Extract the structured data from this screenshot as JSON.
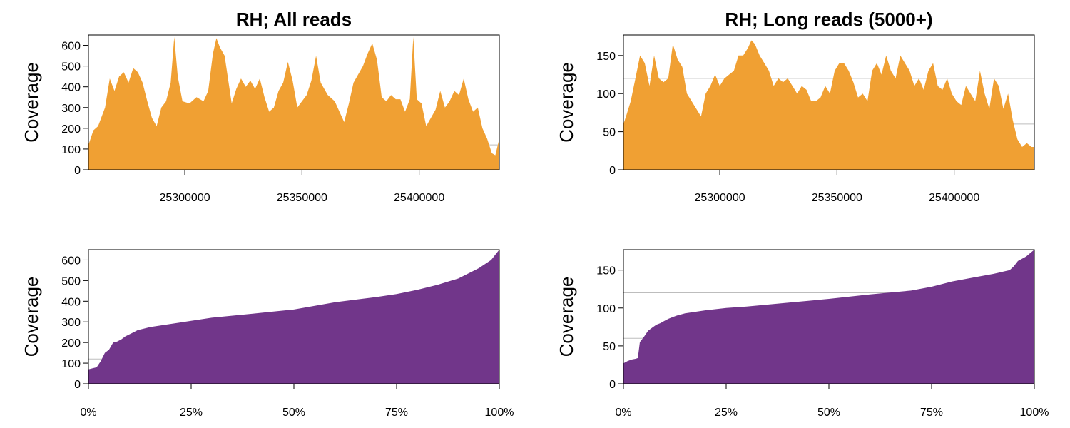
{
  "colors": {
    "coverage_fill": "#F0A033",
    "sorted_fill": "#71368A",
    "guide_line": "#bdbdbd",
    "axis": "#000000"
  },
  "chart_data": [
    {
      "type": "area",
      "title": "RH; All reads",
      "xlabel": "",
      "ylabel": "Coverage",
      "xlim": [
        25258900,
        25434200
      ],
      "ylim": [
        0,
        650
      ],
      "xticks": [
        25300000,
        25350000,
        25400000
      ],
      "xtick_labels": [
        "25300000",
        "25350000",
        "25400000"
      ],
      "yticks": [
        0,
        100,
        200,
        300,
        400,
        500,
        600
      ],
      "ytick_labels": [
        "0",
        "100",
        "200",
        "300",
        "400",
        "500",
        "600"
      ],
      "guide_lines": [
        120
      ],
      "x": [
        25258900,
        25261000,
        25263000,
        25266000,
        25268000,
        25270000,
        25272000,
        25274000,
        25276000,
        25278000,
        25280000,
        25282000,
        25284000,
        25286000,
        25288000,
        25290000,
        25292000,
        25294000,
        25295500,
        25297000,
        25299000,
        25302000,
        25305000,
        25308000,
        25310000,
        25312000,
        25313500,
        25315000,
        25317000,
        25320000,
        25322000,
        25324000,
        25326000,
        25328000,
        25330000,
        25332000,
        25334000,
        25336000,
        25338000,
        25340000,
        25342000,
        25344000,
        25346000,
        25348000,
        25350000,
        25352000,
        25354000,
        25356000,
        25358000,
        25361000,
        25364000,
        25366000,
        25368000,
        25370000,
        25372000,
        25374000,
        25376000,
        25378000,
        25380000,
        25382000,
        25384000,
        25386000,
        25388000,
        25390000,
        25392000,
        25394000,
        25396000,
        25397500,
        25399000,
        25401000,
        25403000,
        25405000,
        25407000,
        25409000,
        25411000,
        25413000,
        25415000,
        25417000,
        25419000,
        25421000,
        25423000,
        25425000,
        25427000,
        25429000,
        25431000,
        25432500,
        25434200
      ],
      "values": [
        120,
        190,
        210,
        300,
        440,
        380,
        450,
        470,
        420,
        490,
        470,
        420,
        330,
        250,
        210,
        300,
        330,
        420,
        640,
        450,
        330,
        320,
        350,
        330,
        380,
        560,
        635,
        590,
        550,
        320,
        390,
        440,
        400,
        430,
        390,
        440,
        350,
        280,
        300,
        380,
        420,
        520,
        430,
        300,
        330,
        360,
        430,
        550,
        420,
        360,
        330,
        280,
        230,
        320,
        420,
        460,
        500,
        560,
        610,
        530,
        350,
        330,
        360,
        340,
        340,
        280,
        340,
        640,
        340,
        320,
        210,
        250,
        290,
        380,
        300,
        330,
        380,
        360,
        440,
        340,
        280,
        300,
        200,
        150,
        80,
        70,
        150
      ]
    },
    {
      "type": "area",
      "title": "RH; Long reads (5000+)",
      "xlabel": "",
      "ylabel": "Coverage",
      "xlim": [
        25258900,
        25434200
      ],
      "ylim": [
        0,
        177
      ],
      "xticks": [
        25300000,
        25350000,
        25400000
      ],
      "xtick_labels": [
        "25300000",
        "25350000",
        "25400000"
      ],
      "yticks": [
        0,
        50,
        100,
        150
      ],
      "ytick_labels": [
        "0",
        "50",
        "100",
        "150"
      ],
      "guide_lines": [
        60,
        120
      ],
      "x": [
        25258900,
        25260000,
        25262000,
        25264000,
        25266000,
        25268000,
        25270000,
        25272000,
        25274000,
        25276000,
        25278000,
        25280000,
        25282000,
        25284000,
        25286000,
        25288000,
        25290000,
        25292000,
        25294000,
        25296000,
        25298000,
        25300000,
        25302000,
        25304000,
        25306000,
        25308000,
        25310000,
        25312000,
        25313500,
        25315000,
        25317000,
        25319000,
        25321000,
        25323000,
        25325000,
        25327000,
        25329000,
        25331000,
        25333000,
        25335000,
        25337000,
        25339000,
        25341000,
        25343000,
        25345000,
        25347000,
        25349000,
        25351000,
        25353000,
        25355000,
        25357000,
        25359000,
        25361000,
        25363000,
        25365000,
        25367000,
        25369000,
        25371000,
        25373000,
        25375000,
        25377000,
        25379000,
        25381000,
        25383000,
        25385000,
        25387000,
        25389000,
        25391000,
        25393000,
        25395000,
        25397000,
        25399000,
        25401000,
        25403000,
        25405000,
        25407000,
        25409000,
        25411000,
        25413000,
        25415000,
        25417000,
        25419000,
        25421000,
        25423000,
        25425000,
        25427000,
        25429000,
        25431000,
        25433000,
        25434200
      ],
      "values": [
        60,
        70,
        90,
        120,
        150,
        140,
        110,
        150,
        120,
        115,
        120,
        165,
        145,
        135,
        100,
        90,
        80,
        70,
        100,
        110,
        125,
        110,
        120,
        125,
        130,
        150,
        150,
        160,
        170,
        165,
        150,
        140,
        130,
        110,
        120,
        115,
        120,
        110,
        100,
        110,
        105,
        90,
        90,
        95,
        110,
        100,
        130,
        140,
        140,
        130,
        115,
        95,
        100,
        90,
        130,
        140,
        125,
        150,
        130,
        120,
        150,
        140,
        130,
        110,
        120,
        105,
        130,
        140,
        110,
        105,
        120,
        100,
        90,
        85,
        110,
        100,
        90,
        130,
        100,
        80,
        120,
        110,
        80,
        100,
        65,
        40,
        30,
        35,
        30,
        30
      ]
    },
    {
      "type": "area",
      "title": "",
      "xlabel": "",
      "ylabel": "Coverage",
      "xlim": [
        0,
        100
      ],
      "ylim": [
        0,
        650
      ],
      "xticks": [
        0,
        25,
        50,
        75,
        100
      ],
      "xtick_labels": [
        "0%",
        "25%",
        "50%",
        "75%",
        "100%"
      ],
      "yticks": [
        0,
        100,
        200,
        300,
        400,
        500,
        600
      ],
      "ytick_labels": [
        "0",
        "100",
        "200",
        "300",
        "400",
        "500",
        "600"
      ],
      "guide_lines": [
        120
      ],
      "x": [
        0,
        1,
        2,
        3,
        4,
        5,
        6,
        7,
        8,
        9,
        10,
        11,
        12,
        13,
        15,
        20,
        25,
        30,
        40,
        50,
        60,
        70,
        75,
        80,
        85,
        90,
        95,
        98,
        100
      ],
      "values": [
        70,
        75,
        80,
        110,
        150,
        165,
        200,
        205,
        215,
        230,
        240,
        250,
        260,
        265,
        275,
        290,
        305,
        320,
        340,
        360,
        395,
        420,
        435,
        455,
        480,
        510,
        560,
        600,
        650
      ]
    },
    {
      "type": "area",
      "title": "",
      "xlabel": "",
      "ylabel": "Coverage",
      "xlim": [
        0,
        100
      ],
      "ylim": [
        0,
        177
      ],
      "xticks": [
        0,
        25,
        50,
        75,
        100
      ],
      "xtick_labels": [
        "0%",
        "25%",
        "50%",
        "75%",
        "100%"
      ],
      "yticks": [
        0,
        50,
        100,
        150
      ],
      "ytick_labels": [
        "0",
        "50",
        "100",
        "150"
      ],
      "guide_lines": [
        60,
        120
      ],
      "x": [
        0,
        1,
        2,
        3,
        3.5,
        4,
        5,
        6,
        7,
        8,
        9,
        10,
        11,
        12,
        13,
        15,
        20,
        25,
        30,
        40,
        50,
        60,
        70,
        75,
        80,
        85,
        90,
        94,
        95,
        96,
        98,
        100
      ],
      "values": [
        27,
        30,
        32,
        33,
        34,
        55,
        62,
        70,
        74,
        78,
        80,
        83,
        86,
        88,
        90,
        93,
        97,
        100,
        102,
        107,
        112,
        118,
        123,
        128,
        135,
        140,
        145,
        150,
        155,
        162,
        168,
        177
      ]
    }
  ]
}
